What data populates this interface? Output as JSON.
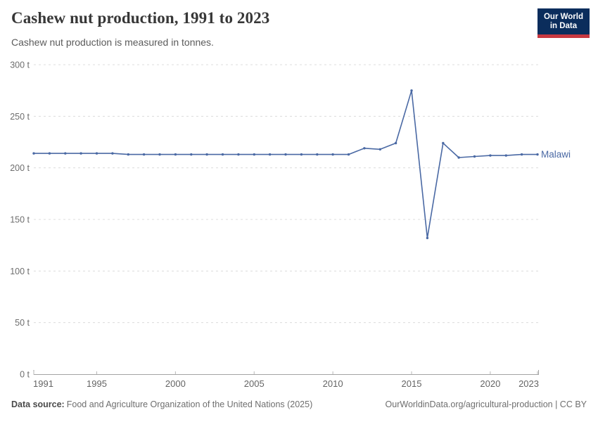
{
  "header": {
    "title": "Cashew nut production, 1991 to 2023",
    "subtitle": "Cashew nut production is measured in tonnes.",
    "logo_line1": "Our World",
    "logo_line2": "in Data"
  },
  "chart_data": {
    "type": "line",
    "title": "Cashew nut production, 1991 to 2023",
    "ylabel": "tonnes",
    "unit": "t",
    "x": [
      1991,
      1992,
      1993,
      1994,
      1995,
      1996,
      1997,
      1998,
      1999,
      2000,
      2001,
      2002,
      2003,
      2004,
      2005,
      2006,
      2007,
      2008,
      2009,
      2010,
      2011,
      2012,
      2013,
      2014,
      2015,
      2016,
      2017,
      2018,
      2019,
      2020,
      2021,
      2022,
      2023
    ],
    "series": [
      {
        "name": "Malawi",
        "color": "#4a69a4",
        "values": [
          214,
          214,
          214,
          214,
          214,
          214,
          213,
          213,
          213,
          213,
          213,
          213,
          213,
          213,
          213,
          213,
          213,
          213,
          213,
          213,
          213,
          219,
          218,
          224,
          275,
          132,
          224,
          210,
          211,
          212,
          212,
          213,
          213
        ]
      }
    ],
    "ylim": [
      0,
      300
    ],
    "yticks": [
      0,
      50,
      100,
      150,
      200,
      250,
      300
    ],
    "ytick_labels": [
      "0 t",
      "50 t",
      "100 t",
      "150 t",
      "200 t",
      "250 t",
      "300 t"
    ],
    "xticks": [
      1991,
      1995,
      2000,
      2005,
      2010,
      2015,
      2020,
      2023
    ],
    "xtick_labels": [
      "1991",
      "1995",
      "2000",
      "2005",
      "2010",
      "2015",
      "2020",
      "2023"
    ],
    "grid": "horizontal-dashed",
    "legend": "line-end-label"
  },
  "footer": {
    "source_label": "Data source:",
    "source_text": "Food and Agriculture Organization of the United Nations (2025)",
    "attribution": "OurWorldinData.org/agricultural-production | CC BY"
  },
  "colors": {
    "line": "#4a69a4",
    "grid": "#dcdcdc",
    "axis": "#a3a3a3",
    "tick": "#b8b8b8",
    "logo_bg": "#0b2d5c",
    "logo_stripe": "#c73840"
  }
}
